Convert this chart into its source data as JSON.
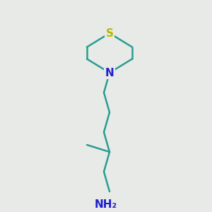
{
  "bg_color": "#e8eae8",
  "bond_color": "#2a9d8f",
  "S_color": "#b8b800",
  "N_color": "#2020cc",
  "NH2_color": "#2020cc",
  "bond_width": 1.8,
  "S_label": "S",
  "N_label": "N",
  "NH2_label": "NH₂"
}
